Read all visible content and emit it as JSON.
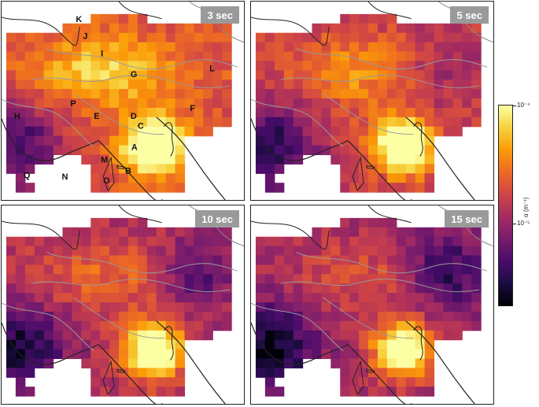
{
  "panels": [
    {
      "id": "p3",
      "label": "3 sec",
      "intensity": 1.0
    },
    {
      "id": "p5",
      "label": "5 sec",
      "intensity": 0.78
    },
    {
      "id": "p10",
      "label": "10 sec",
      "intensity": 0.62
    },
    {
      "id": "p15",
      "label": "15 sec",
      "intensity": 0.52
    }
  ],
  "region_labels": [
    "K",
    "J",
    "I",
    "G",
    "L",
    "P",
    "E",
    "D",
    "F",
    "H",
    "C",
    "A",
    "M",
    "B",
    "Q",
    "N",
    "O"
  ],
  "colorbar": {
    "tick_max": "10⁻⁴",
    "tick_min": "10⁻⁵",
    "label": "α (m⁻¹)",
    "colormap": [
      "#000004",
      "#1b0c41",
      "#4a0c6b",
      "#781c6d",
      "#a52c60",
      "#cf4446",
      "#ed6925",
      "#fb9b06",
      "#f7d13d",
      "#fcffa4"
    ]
  }
}
